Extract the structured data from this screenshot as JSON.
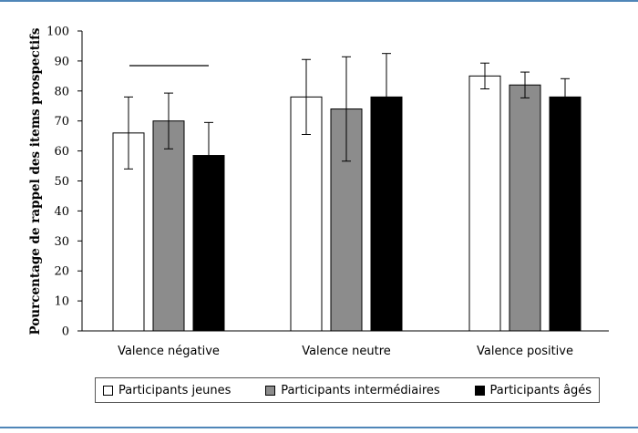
{
  "chart_data": {
    "type": "bar",
    "title": "",
    "xlabel": "",
    "ylabel": "Pourcentage de rappel des items prospectifs",
    "ylim": [
      0,
      100
    ],
    "yticks": [
      0,
      10,
      20,
      30,
      40,
      50,
      60,
      70,
      80,
      90,
      100
    ],
    "categories": [
      "Valence négative",
      "Valence neutre",
      "Valence positive"
    ],
    "series": [
      {
        "name": "Participants jeunes",
        "color": "#ffffff",
        "values": [
          66,
          78,
          85
        ],
        "error": [
          12,
          12.5,
          4.3
        ]
      },
      {
        "name": "Participants intermédiaires",
        "color": "#8c8c8c",
        "values": [
          70,
          74,
          82
        ],
        "error": [
          9.3,
          17.4,
          4.3
        ]
      },
      {
        "name": "Participants âgés",
        "color": "#000000",
        "values": [
          58.5,
          78,
          78
        ],
        "error": [
          11,
          14.5,
          6.1
        ]
      }
    ],
    "annotations": [
      {
        "type": "bracket-line",
        "category": "Valence négative"
      }
    ],
    "grid": false,
    "legend_position": "bottom"
  }
}
